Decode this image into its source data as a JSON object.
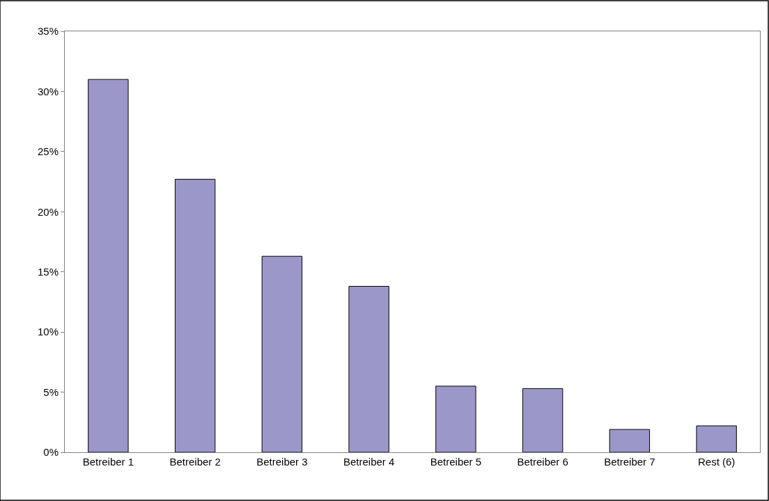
{
  "chart_data": {
    "type": "bar",
    "categories": [
      "Betreiber 1",
      "Betreiber 2",
      "Betreiber 3",
      "Betreiber 4",
      "Betreiber 5",
      "Betreiber 6",
      "Betreiber 7",
      "Rest (6)"
    ],
    "values": [
      31.0,
      22.7,
      16.3,
      13.8,
      5.5,
      5.3,
      1.9,
      2.2
    ],
    "color": "#9c97c9",
    "ylim": [
      0,
      35
    ],
    "yticks": [
      {
        "value": 0,
        "label": "0%"
      },
      {
        "value": 5,
        "label": "5%"
      },
      {
        "value": 10,
        "label": "10%"
      },
      {
        "value": 15,
        "label": "15%"
      },
      {
        "value": 20,
        "label": "20%"
      },
      {
        "value": 25,
        "label": "25%"
      },
      {
        "value": 30,
        "label": "30%"
      },
      {
        "value": 35,
        "label": "35%"
      }
    ],
    "orientation": "vertical"
  }
}
